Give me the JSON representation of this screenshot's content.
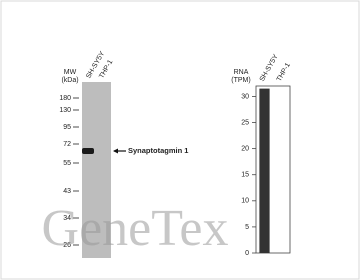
{
  "blot": {
    "mw_label": "MW",
    "mw_unit": "(kDa)",
    "lanes": [
      "SH-SY5Y",
      "THP-1"
    ],
    "markers": [
      180,
      130,
      95,
      72,
      55,
      43,
      34,
      26
    ],
    "target": "Synaptotagmin 1"
  },
  "watermark": "GeneTex",
  "chart_data": {
    "type": "bar",
    "y_label": "RNA",
    "y_unit": "(TPM)",
    "categories": [
      "SH-SY5Y",
      "THP-1"
    ],
    "values": [
      31.5,
      0
    ],
    "color": "#333333",
    "ylim": [
      0,
      32
    ],
    "yticks": [
      0,
      5,
      10,
      15,
      20,
      25,
      30
    ]
  }
}
